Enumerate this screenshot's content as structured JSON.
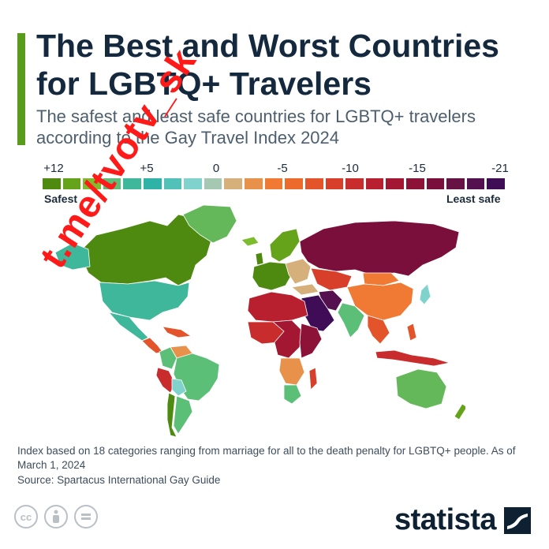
{
  "header": {
    "title": "The Best and Worst Countries for LGBTQ+ Travelers",
    "subtitle": "The safest and least safe countries for LGBTQ+ travelers according to the Gay Travel Index 2024",
    "accent_color": "#5a9a1c"
  },
  "legend": {
    "tick_labels": [
      "+12",
      "+5",
      "0",
      "-5",
      "-10",
      "-15",
      "-21"
    ],
    "safest_label": "Safest",
    "least_safe_label": "Least safe",
    "colors": [
      "#4f8a10",
      "#65a31a",
      "#7dbd2d",
      "#5cbf78",
      "#3fb79a",
      "#2fb3a6",
      "#52c2b9",
      "#7fd3cc",
      "#a4c8b2",
      "#d6b07a",
      "#e8914b",
      "#f07a33",
      "#ec6a2c",
      "#e3542a",
      "#d73f2a",
      "#c92c2c",
      "#b81f2f",
      "#a31733",
      "#8c1238",
      "#7a0f3c",
      "#661245",
      "#55114f",
      "#3f0d56"
    ]
  },
  "map": {
    "regions": [
      {
        "name": "Canada",
        "color": "#4f8a10"
      },
      {
        "name": "Greenland",
        "color": "#65b85a"
      },
      {
        "name": "United States",
        "color": "#3fb79a"
      },
      {
        "name": "Mexico",
        "color": "#3fb79a"
      },
      {
        "name": "Central America",
        "color": "#e3542a"
      },
      {
        "name": "Colombia",
        "color": "#5cbf78"
      },
      {
        "name": "Venezuela",
        "color": "#e8914b"
      },
      {
        "name": "Peru",
        "color": "#c92c2c"
      },
      {
        "name": "Brazil",
        "color": "#5cbf78"
      },
      {
        "name": "Bolivia",
        "color": "#7fd3cc"
      },
      {
        "name": "Paraguay",
        "color": "#7fd3cc"
      },
      {
        "name": "Argentina",
        "color": "#5cbf78"
      },
      {
        "name": "Chile",
        "color": "#4f8a10"
      },
      {
        "name": "Iceland",
        "color": "#7dbd2d"
      },
      {
        "name": "Scandinavia",
        "color": "#65a31a"
      },
      {
        "name": "Western Europe",
        "color": "#4f8a10"
      },
      {
        "name": "Eastern Europe",
        "color": "#d6b07a"
      },
      {
        "name": "Russia",
        "color": "#7a0f3c"
      },
      {
        "name": "North Africa",
        "color": "#b81f2f"
      },
      {
        "name": "West Africa",
        "color": "#c92c2c"
      },
      {
        "name": "Central Africa",
        "color": "#a31733"
      },
      {
        "name": "East Africa",
        "color": "#8c1238"
      },
      {
        "name": "Southern Africa",
        "color": "#e8914b"
      },
      {
        "name": "South Africa",
        "color": "#5cbf78"
      },
      {
        "name": "Madagascar",
        "color": "#d73f2a"
      },
      {
        "name": "Arabian Peninsula",
        "color": "#3f0d56"
      },
      {
        "name": "Iran",
        "color": "#55114f"
      },
      {
        "name": "Central Asia",
        "color": "#d73f2a"
      },
      {
        "name": "India",
        "color": "#5cbf78"
      },
      {
        "name": "China",
        "color": "#f07a33"
      },
      {
        "name": "Mongolia",
        "color": "#f07a33"
      },
      {
        "name": "Japan",
        "color": "#7fd3cc"
      },
      {
        "name": "Southeast Asia",
        "color": "#e3542a"
      },
      {
        "name": "Indonesia",
        "color": "#c92c2c"
      },
      {
        "name": "Australia",
        "color": "#65b85a"
      },
      {
        "name": "New Zealand",
        "color": "#65a31a"
      }
    ]
  },
  "watermark": "t.me/tvotv_sk",
  "footer": {
    "note": "Index based on 18 categories ranging from marriage for all to the death penalty for LGBTQ+ people. As of March 1, 2024",
    "source": "Source: Spartacus International Gay Guide",
    "license_icons": [
      "cc-icon",
      "attribution-icon",
      "no-derivatives-icon"
    ],
    "brand": "statista"
  }
}
